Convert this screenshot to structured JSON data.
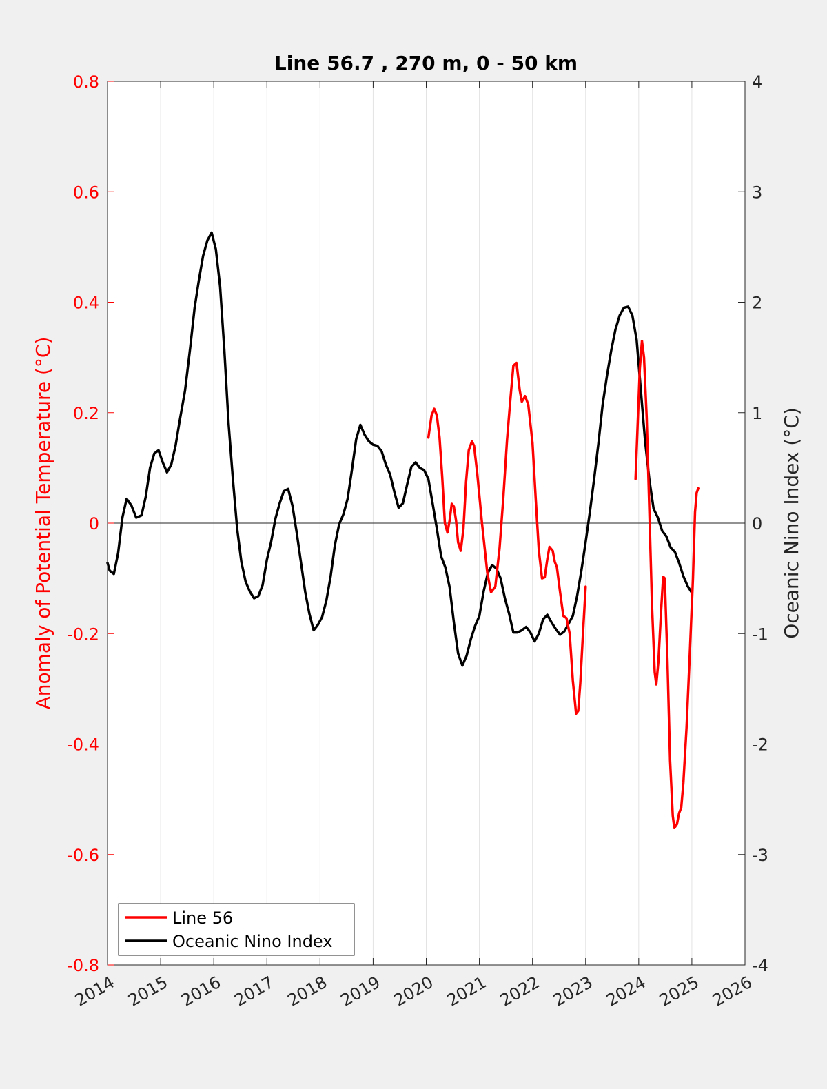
{
  "chart_data": {
    "type": "line",
    "title": "Line 56.7 , 270 m, 0 - 50 km",
    "xlabel": "",
    "ylabel_left": "Anomaly of Potential Temperature (°C)",
    "ylabel_right": "Oceanic Nino Index (°C)",
    "xlim": [
      2014,
      2026
    ],
    "ylim_left": [
      -0.8,
      0.8
    ],
    "ylim_right": [
      -4,
      4
    ],
    "x_ticks": [
      "2014",
      "2015",
      "2016",
      "2017",
      "2018",
      "2019",
      "2020",
      "2021",
      "2022",
      "2023",
      "2024",
      "2025",
      "2026"
    ],
    "y_left_ticks": [
      "-0.8",
      "-0.6",
      "-0.4",
      "-0.2",
      "0",
      "0.2",
      "0.4",
      "0.6",
      "0.8"
    ],
    "y_right_ticks": [
      "-4",
      "-3",
      "-2",
      "-1",
      "0",
      "1",
      "2",
      "3",
      "4"
    ],
    "grid": "vertical",
    "zero_line": true,
    "legend": {
      "location": "bottom-left",
      "entries": [
        "Line 56",
        "Oceanic Nino Index"
      ]
    },
    "colors": {
      "line56": "#ff0000",
      "oni": "#000000",
      "axis_left": "#ff0000",
      "axis_right": "#262626",
      "background": "#f0f0f0"
    },
    "series": [
      {
        "name": "Line 56",
        "axis": "left",
        "color": "#ff0000",
        "segments": [
          [
            [
              2020.04,
              0.155
            ],
            [
              2020.1,
              0.195
            ],
            [
              2020.15,
              0.207
            ],
            [
              2020.2,
              0.195
            ],
            [
              2020.25,
              0.155
            ],
            [
              2020.3,
              0.085
            ],
            [
              2020.35,
              0.0
            ],
            [
              2020.4,
              -0.017
            ],
            [
              2020.44,
              0.005
            ],
            [
              2020.48,
              0.035
            ],
            [
              2020.52,
              0.03
            ],
            [
              2020.56,
              0.005
            ],
            [
              2020.6,
              -0.035
            ],
            [
              2020.65,
              -0.05
            ],
            [
              2020.7,
              -0.01
            ],
            [
              2020.75,
              0.075
            ],
            [
              2020.8,
              0.132
            ],
            [
              2020.86,
              0.148
            ],
            [
              2020.9,
              0.14
            ],
            [
              2020.96,
              0.09
            ],
            [
              2021.05,
              0.0
            ],
            [
              2021.15,
              -0.09
            ],
            [
              2021.22,
              -0.125
            ],
            [
              2021.3,
              -0.115
            ],
            [
              2021.38,
              -0.045
            ],
            [
              2021.45,
              0.045
            ],
            [
              2021.52,
              0.15
            ],
            [
              2021.58,
              0.22
            ],
            [
              2021.64,
              0.285
            ],
            [
              2021.7,
              0.29
            ],
            [
              2021.76,
              0.24
            ],
            [
              2021.8,
              0.22
            ],
            [
              2021.86,
              0.23
            ],
            [
              2021.92,
              0.215
            ],
            [
              2022.0,
              0.145
            ],
            [
              2022.06,
              0.045
            ],
            [
              2022.12,
              -0.05
            ],
            [
              2022.18,
              -0.1
            ],
            [
              2022.23,
              -0.098
            ],
            [
              2022.28,
              -0.065
            ],
            [
              2022.32,
              -0.043
            ],
            [
              2022.38,
              -0.05
            ],
            [
              2022.42,
              -0.07
            ],
            [
              2022.46,
              -0.08
            ],
            [
              2022.52,
              -0.125
            ],
            [
              2022.58,
              -0.168
            ],
            [
              2022.64,
              -0.172
            ],
            [
              2022.7,
              -0.2
            ],
            [
              2022.76,
              -0.285
            ],
            [
              2022.82,
              -0.345
            ],
            [
              2022.86,
              -0.34
            ],
            [
              2022.9,
              -0.29
            ],
            [
              2022.95,
              -0.2
            ],
            [
              2023.0,
              -0.115
            ]
          ],
          [
            [
              2023.94,
              0.08
            ],
            [
              2023.98,
              0.18
            ],
            [
              2024.02,
              0.28
            ],
            [
              2024.06,
              0.33
            ],
            [
              2024.1,
              0.3
            ],
            [
              2024.15,
              0.19
            ],
            [
              2024.2,
              0.02
            ],
            [
              2024.25,
              -0.15
            ],
            [
              2024.3,
              -0.27
            ],
            [
              2024.33,
              -0.292
            ],
            [
              2024.37,
              -0.25
            ],
            [
              2024.42,
              -0.16
            ],
            [
              2024.46,
              -0.097
            ],
            [
              2024.49,
              -0.1
            ],
            [
              2024.54,
              -0.25
            ],
            [
              2024.59,
              -0.43
            ],
            [
              2024.64,
              -0.53
            ],
            [
              2024.67,
              -0.552
            ],
            [
              2024.72,
              -0.545
            ],
            [
              2024.76,
              -0.525
            ],
            [
              2024.8,
              -0.515
            ],
            [
              2024.84,
              -0.47
            ],
            [
              2024.9,
              -0.37
            ],
            [
              2024.96,
              -0.24
            ],
            [
              2025.02,
              -0.1
            ],
            [
              2025.06,
              0.02
            ],
            [
              2025.09,
              0.055
            ],
            [
              2025.12,
              0.063
            ]
          ]
        ]
      },
      {
        "name": "Oceanic Nino Index",
        "axis": "right",
        "color": "#000000",
        "segments": [
          [
            [
              2014.0,
              -0.36
            ],
            [
              2014.04,
              -0.43
            ],
            [
              2014.12,
              -0.46
            ],
            [
              2014.2,
              -0.27
            ],
            [
              2014.28,
              0.05
            ],
            [
              2014.36,
              0.22
            ],
            [
              2014.45,
              0.16
            ],
            [
              2014.54,
              0.05
            ],
            [
              2014.64,
              0.07
            ],
            [
              2014.72,
              0.24
            ],
            [
              2014.8,
              0.5
            ],
            [
              2014.88,
              0.63
            ],
            [
              2014.96,
              0.66
            ],
            [
              2015.04,
              0.55
            ],
            [
              2015.12,
              0.46
            ],
            [
              2015.2,
              0.53
            ],
            [
              2015.28,
              0.7
            ],
            [
              2015.36,
              0.93
            ],
            [
              2015.46,
              1.2
            ],
            [
              2015.56,
              1.6
            ],
            [
              2015.64,
              1.95
            ],
            [
              2015.72,
              2.2
            ],
            [
              2015.8,
              2.42
            ],
            [
              2015.88,
              2.56
            ],
            [
              2015.96,
              2.63
            ],
            [
              2016.04,
              2.48
            ],
            [
              2016.12,
              2.14
            ],
            [
              2016.2,
              1.56
            ],
            [
              2016.28,
              0.9
            ],
            [
              2016.36,
              0.4
            ],
            [
              2016.44,
              -0.05
            ],
            [
              2016.52,
              -0.35
            ],
            [
              2016.6,
              -0.53
            ],
            [
              2016.68,
              -0.62
            ],
            [
              2016.76,
              -0.68
            ],
            [
              2016.84,
              -0.66
            ],
            [
              2016.92,
              -0.56
            ],
            [
              2017.0,
              -0.33
            ],
            [
              2017.08,
              -0.17
            ],
            [
              2017.16,
              0.04
            ],
            [
              2017.24,
              0.18
            ],
            [
              2017.32,
              0.29
            ],
            [
              2017.4,
              0.31
            ],
            [
              2017.48,
              0.16
            ],
            [
              2017.56,
              -0.08
            ],
            [
              2017.64,
              -0.35
            ],
            [
              2017.72,
              -0.62
            ],
            [
              2017.8,
              -0.82
            ],
            [
              2017.88,
              -0.97
            ],
            [
              2017.96,
              -0.92
            ],
            [
              2018.04,
              -0.85
            ],
            [
              2018.12,
              -0.7
            ],
            [
              2018.2,
              -0.48
            ],
            [
              2018.28,
              -0.2
            ],
            [
              2018.36,
              -0.01
            ],
            [
              2018.44,
              0.08
            ],
            [
              2018.52,
              0.22
            ],
            [
              2018.6,
              0.48
            ],
            [
              2018.68,
              0.76
            ],
            [
              2018.76,
              0.89
            ],
            [
              2018.84,
              0.8
            ],
            [
              2018.92,
              0.74
            ],
            [
              2019.0,
              0.71
            ],
            [
              2019.08,
              0.7
            ],
            [
              2019.16,
              0.65
            ],
            [
              2019.24,
              0.53
            ],
            [
              2019.32,
              0.44
            ],
            [
              2019.4,
              0.28
            ],
            [
              2019.48,
              0.14
            ],
            [
              2019.56,
              0.18
            ],
            [
              2019.64,
              0.35
            ],
            [
              2019.72,
              0.51
            ],
            [
              2019.8,
              0.55
            ],
            [
              2019.88,
              0.5
            ],
            [
              2019.96,
              0.48
            ],
            [
              2020.04,
              0.4
            ],
            [
              2020.12,
              0.18
            ],
            [
              2020.2,
              -0.05
            ],
            [
              2020.28,
              -0.3
            ],
            [
              2020.36,
              -0.4
            ],
            [
              2020.44,
              -0.58
            ],
            [
              2020.52,
              -0.9
            ],
            [
              2020.6,
              -1.18
            ],
            [
              2020.68,
              -1.29
            ],
            [
              2020.76,
              -1.2
            ],
            [
              2020.84,
              -1.05
            ],
            [
              2020.92,
              -0.93
            ],
            [
              2021.0,
              -0.84
            ],
            [
              2021.08,
              -0.62
            ],
            [
              2021.16,
              -0.45
            ],
            [
              2021.24,
              -0.38
            ],
            [
              2021.32,
              -0.41
            ],
            [
              2021.4,
              -0.5
            ],
            [
              2021.48,
              -0.68
            ],
            [
              2021.56,
              -0.82
            ],
            [
              2021.64,
              -0.99
            ],
            [
              2021.72,
              -0.99
            ],
            [
              2021.8,
              -0.97
            ],
            [
              2021.88,
              -0.94
            ],
            [
              2021.96,
              -0.99
            ],
            [
              2022.04,
              -1.07
            ],
            [
              2022.12,
              -1.0
            ],
            [
              2022.2,
              -0.87
            ],
            [
              2022.28,
              -0.83
            ],
            [
              2022.36,
              -0.9
            ],
            [
              2022.44,
              -0.96
            ],
            [
              2022.52,
              -1.01
            ],
            [
              2022.6,
              -0.98
            ],
            [
              2022.68,
              -0.91
            ],
            [
              2022.76,
              -0.84
            ],
            [
              2022.84,
              -0.66
            ],
            [
              2022.92,
              -0.43
            ],
            [
              2023.0,
              -0.17
            ],
            [
              2023.08,
              0.1
            ],
            [
              2023.16,
              0.4
            ],
            [
              2023.24,
              0.72
            ],
            [
              2023.32,
              1.07
            ],
            [
              2023.4,
              1.33
            ],
            [
              2023.48,
              1.56
            ],
            [
              2023.56,
              1.75
            ],
            [
              2023.64,
              1.88
            ],
            [
              2023.72,
              1.95
            ],
            [
              2023.8,
              1.96
            ],
            [
              2023.88,
              1.88
            ],
            [
              2023.96,
              1.66
            ],
            [
              2024.04,
              1.2
            ],
            [
              2024.12,
              0.74
            ],
            [
              2024.2,
              0.39
            ],
            [
              2024.28,
              0.13
            ],
            [
              2024.36,
              0.05
            ],
            [
              2024.44,
              -0.07
            ],
            [
              2024.52,
              -0.12
            ],
            [
              2024.6,
              -0.22
            ],
            [
              2024.68,
              -0.26
            ],
            [
              2024.76,
              -0.36
            ],
            [
              2024.84,
              -0.48
            ],
            [
              2024.92,
              -0.57
            ],
            [
              2025.0,
              -0.63
            ]
          ]
        ]
      }
    ]
  }
}
